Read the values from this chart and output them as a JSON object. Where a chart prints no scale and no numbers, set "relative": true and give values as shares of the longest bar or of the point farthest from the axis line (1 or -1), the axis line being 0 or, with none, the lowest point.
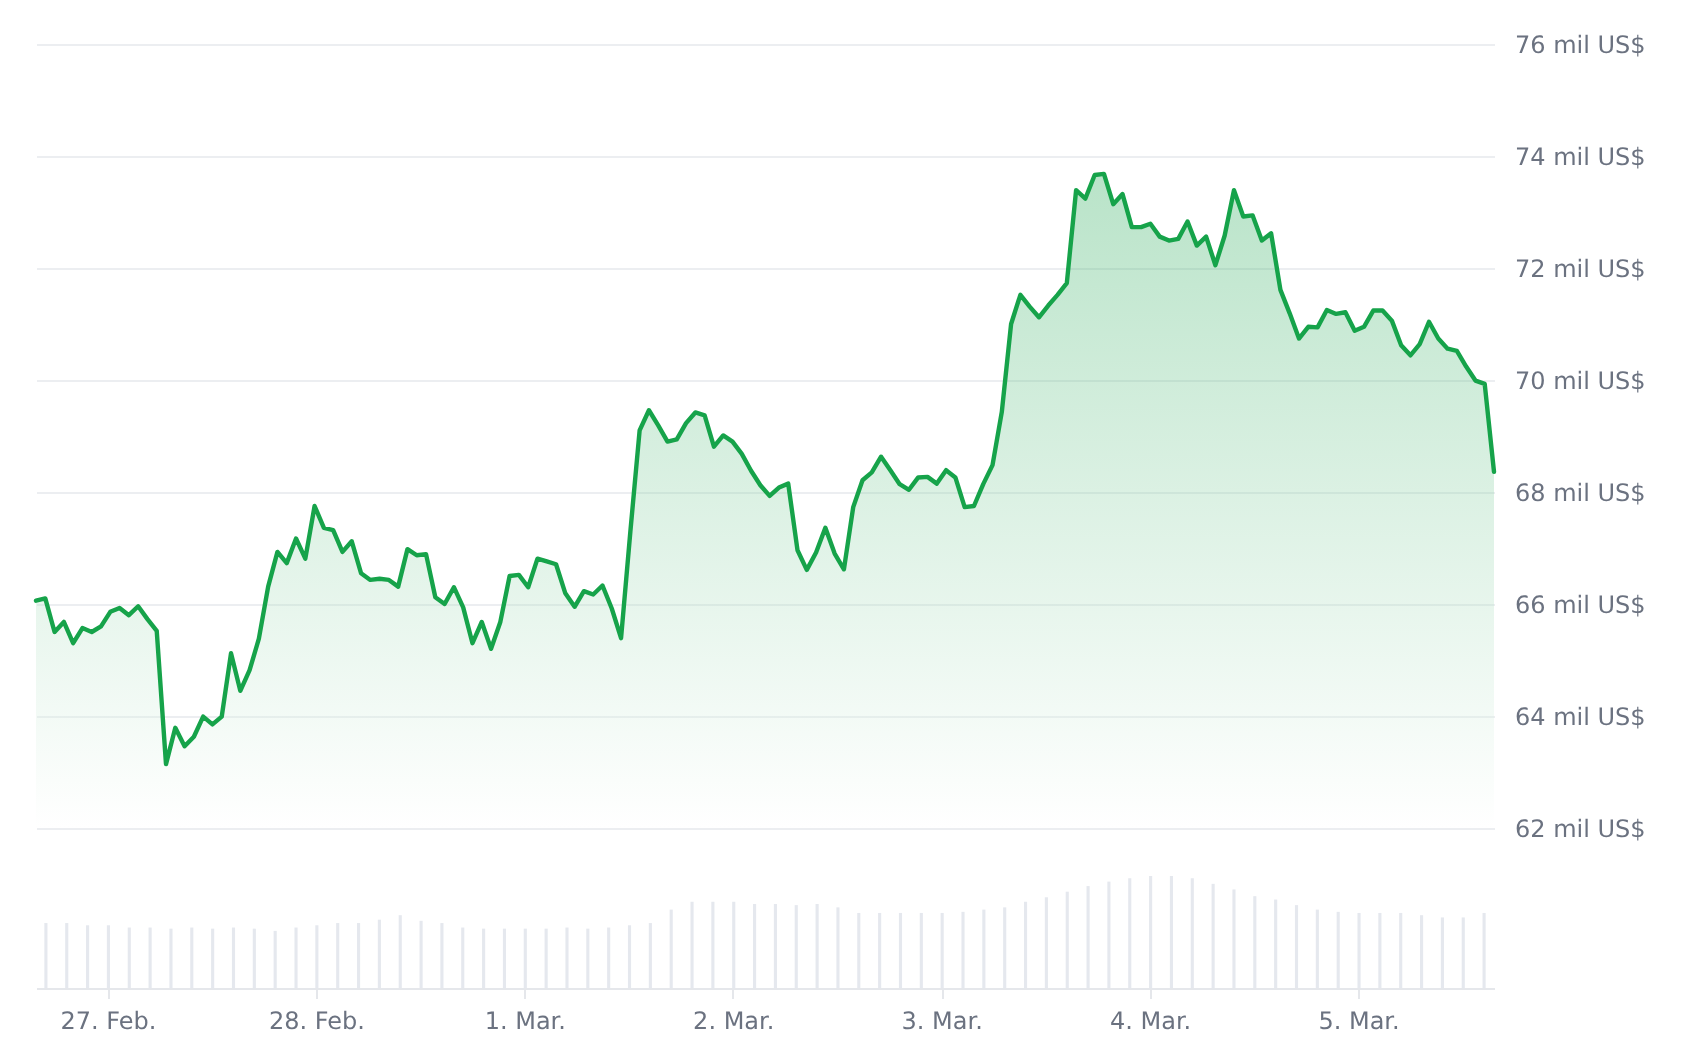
{
  "chart_data": [
    {
      "type": "area",
      "color": "#16a34a",
      "grid": "y",
      "tick_labels": "y",
      "ylim": [
        62,
        76
      ],
      "yticks": [
        {
          "value": 62,
          "label": "62 mil US$"
        },
        {
          "value": 64,
          "label": "64 mil US$"
        },
        {
          "value": 66,
          "label": "66 mil US$"
        },
        {
          "value": 68,
          "label": "68 mil US$"
        },
        {
          "value": 70,
          "label": "70 mil US$"
        },
        {
          "value": 72,
          "label": "72 mil US$"
        },
        {
          "value": 74,
          "label": "74 mil US$"
        },
        {
          "value": 76,
          "label": "76 mil US$"
        }
      ],
      "categories": [
        null,
        null,
        null,
        null,
        null,
        null,
        null,
        null,
        null,
        null,
        null,
        null,
        null,
        null,
        null,
        null,
        null,
        null,
        null,
        null,
        null,
        null,
        null,
        null,
        null,
        null,
        null,
        null,
        null,
        null,
        null,
        null,
        null,
        null,
        null,
        null,
        null,
        null,
        null,
        null,
        null,
        null,
        null,
        null,
        null,
        null,
        null,
        null,
        null,
        null,
        null,
        null,
        null,
        null,
        null,
        null,
        null,
        null,
        null,
        null,
        null,
        null,
        null,
        null,
        null,
        null,
        null,
        null,
        null,
        null,
        null,
        null,
        null,
        null,
        null,
        null,
        null,
        null,
        null,
        null,
        null,
        null,
        null,
        null,
        null,
        null,
        null,
        null,
        null,
        null,
        null,
        null,
        null,
        null,
        null,
        null,
        null,
        null,
        null,
        null,
        null,
        null,
        null,
        null,
        null,
        null,
        null,
        null,
        null,
        null,
        null,
        null,
        null,
        null,
        null,
        null,
        null,
        null,
        null,
        null,
        null,
        null,
        null,
        null,
        null,
        null,
        null,
        null,
        null,
        null,
        null,
        null,
        null,
        null,
        null,
        null,
        null,
        null,
        null,
        null,
        null,
        null,
        null,
        null,
        null,
        null,
        null,
        null,
        null,
        null,
        null,
        null,
        null,
        null,
        null,
        null,
        null,
        null
      ],
      "values": [
        66.06,
        66.1,
        65.5,
        65.68,
        65.3,
        65.57,
        65.5,
        65.6,
        65.86,
        65.93,
        65.8,
        65.96,
        65.73,
        65.52,
        63.14,
        63.79,
        63.46,
        63.63,
        63.99,
        63.85,
        63.99,
        65.12,
        64.45,
        64.82,
        65.38,
        66.31,
        66.93,
        66.73,
        67.17,
        66.81,
        67.75,
        67.36,
        67.32,
        66.93,
        67.12,
        66.55,
        66.43,
        66.45,
        66.43,
        66.31,
        66.98,
        66.87,
        66.89,
        66.12,
        66.0,
        66.3,
        65.94,
        65.3,
        65.68,
        65.2,
        65.68,
        66.5,
        66.52,
        66.3,
        66.81,
        66.76,
        66.71,
        66.19,
        65.95,
        66.23,
        66.17,
        66.33,
        65.92,
        65.39,
        67.29,
        69.1,
        69.46,
        69.19,
        68.9,
        68.94,
        69.23,
        69.42,
        69.37,
        68.81,
        69.01,
        68.9,
        68.68,
        68.38,
        68.12,
        67.93,
        68.08,
        68.15,
        66.96,
        66.61,
        66.92,
        67.36,
        66.9,
        66.62,
        67.73,
        68.21,
        68.35,
        68.63,
        68.39,
        68.14,
        68.04,
        68.26,
        68.27,
        68.15,
        68.39,
        68.26,
        67.73,
        67.75,
        68.14,
        68.48,
        69.43,
        71.0,
        71.52,
        71.31,
        71.12,
        71.33,
        71.52,
        71.73,
        73.39,
        73.24,
        73.66,
        73.68,
        73.14,
        73.32,
        72.73,
        72.73,
        72.79,
        72.56,
        72.49,
        72.52,
        72.83,
        72.4,
        72.56,
        72.05,
        72.58,
        73.39,
        72.92,
        72.94,
        72.49,
        72.62,
        71.61,
        71.19,
        70.74,
        70.95,
        70.94,
        71.25,
        71.18,
        71.21,
        70.88,
        70.95,
        71.24,
        71.24,
        71.06,
        70.62,
        70.44,
        70.64,
        71.04,
        70.74,
        70.56,
        70.52,
        70.24,
        69.99,
        69.93,
        68.36
      ]
    },
    {
      "type": "bar",
      "relative": true,
      "color": "#e5e8ee",
      "tick_labels": "x",
      "categories": [
        null,
        null,
        null,
        "27. Feb.",
        null,
        null,
        null,
        null,
        null,
        null,
        null,
        null,
        null,
        "28. Feb.",
        null,
        null,
        null,
        null,
        null,
        null,
        null,
        null,
        null,
        "1. Mar.",
        null,
        null,
        null,
        null,
        null,
        null,
        null,
        null,
        null,
        "2. Mar.",
        null,
        null,
        null,
        null,
        null,
        null,
        null,
        null,
        null,
        "3. Mar.",
        null,
        null,
        null,
        null,
        null,
        null,
        null,
        null,
        null,
        "4. Mar.",
        null,
        null,
        null,
        null,
        null,
        null,
        null,
        null,
        null,
        "5. Mar.",
        null,
        null,
        null,
        null,
        null,
        null
      ],
      "values": [
        0.58,
        0.58,
        0.56,
        0.56,
        0.54,
        0.54,
        0.53,
        0.54,
        0.53,
        0.54,
        0.53,
        0.51,
        0.54,
        0.56,
        0.58,
        0.58,
        0.61,
        0.65,
        0.6,
        0.58,
        0.54,
        0.53,
        0.53,
        0.53,
        0.53,
        0.54,
        0.53,
        0.54,
        0.56,
        0.58,
        0.7,
        0.77,
        0.77,
        0.77,
        0.75,
        0.75,
        0.74,
        0.75,
        0.72,
        0.67,
        0.67,
        0.67,
        0.67,
        0.67,
        0.68,
        0.7,
        0.72,
        0.77,
        0.81,
        0.86,
        0.91,
        0.95,
        0.98,
        1,
        1,
        0.98,
        0.93,
        0.88,
        0.82,
        0.79,
        0.74,
        0.7,
        0.68,
        0.67,
        0.67,
        0.67,
        0.65,
        0.63,
        0.63,
        0.67
      ]
    }
  ]
}
